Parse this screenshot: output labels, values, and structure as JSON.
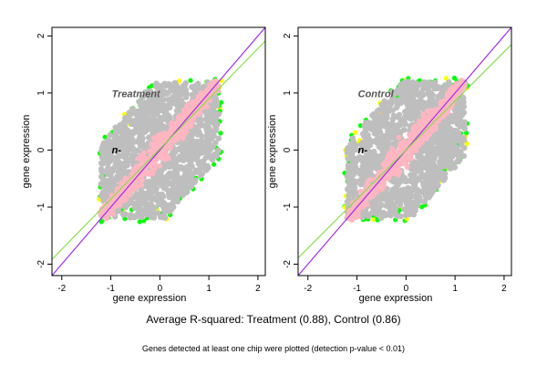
{
  "caption": "Average R-squared: Treatment (0.88), Control (0.86)",
  "subcaption": "Genes detected at least one chip were plotted (detection p-value < 0.01)",
  "colors": {
    "cloud": "#bebebe",
    "diagonal": "#ffb6c1",
    "edge_green": "#00ff00",
    "edge_yellow": "#ffff00",
    "line_identity": "#a020f0",
    "line_fit": "#7fdf3f",
    "frame": "#000000"
  },
  "chart_data": [
    {
      "type": "scatter",
      "panel_label": "Treatment",
      "annotation": "n-",
      "xlabel": "gene expression",
      "ylabel": "gene expression",
      "xlim": [
        -2.2,
        2.15
      ],
      "ylim": [
        -2.2,
        2.15
      ],
      "xticks": [
        -2,
        -1,
        0,
        1,
        2
      ],
      "yticks": [
        -2,
        -1,
        0,
        1,
        2
      ],
      "points": {
        "center": [
          0.0,
          0.0
        ],
        "half_width": 1.2,
        "diagonal_corr": 0.88
      },
      "lines": [
        {
          "kind": "identity",
          "slope": 1.0,
          "intercept": 0.0,
          "color": "#a020f0"
        },
        {
          "kind": "fit",
          "slope": 0.88,
          "intercept": 0.02,
          "color": "#7fdf3f"
        }
      ]
    },
    {
      "type": "scatter",
      "panel_label": "Control",
      "annotation": "n-",
      "xlabel": "gene expression",
      "ylabel": "gene expression",
      "xlim": [
        -2.2,
        2.15
      ],
      "ylim": [
        -2.2,
        2.15
      ],
      "xticks": [
        -2,
        -1,
        0,
        1,
        2
      ],
      "yticks": [
        -2,
        -1,
        0,
        1,
        2
      ],
      "points": {
        "center": [
          0.0,
          0.0
        ],
        "half_width": 1.2,
        "diagonal_corr": 0.86
      },
      "lines": [
        {
          "kind": "identity",
          "slope": 1.0,
          "intercept": 0.0,
          "color": "#a020f0"
        },
        {
          "kind": "fit",
          "slope": 0.86,
          "intercept": 0.0,
          "color": "#7fdf3f"
        }
      ]
    }
  ]
}
